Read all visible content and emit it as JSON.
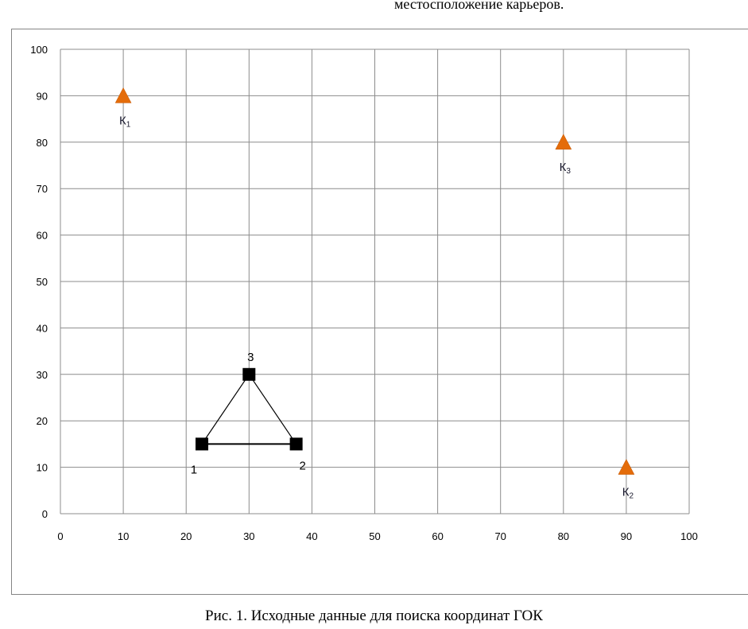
{
  "header_text": "местосположение карьеров.",
  "caption": "Рис. 1. Исходные данные для поиска координат ГОК",
  "chart_data": {
    "type": "scatter",
    "xlim": [
      0,
      100
    ],
    "ylim": [
      0,
      100
    ],
    "x_ticks": [
      "0",
      "10",
      "20",
      "30",
      "40",
      "50",
      "60",
      "70",
      "80",
      "90",
      "100"
    ],
    "y_ticks": [
      "0",
      "10",
      "20",
      "30",
      "40",
      "50",
      "60",
      "70",
      "80",
      "90",
      "100"
    ],
    "grid": true,
    "colors": {
      "quarry": "#E46C0A",
      "point": "#000000",
      "grid": "#8c8c8c"
    },
    "quarries": [
      {
        "main": "К",
        "sub": "1",
        "x": 10,
        "y": 90
      },
      {
        "main": "К",
        "sub": "2",
        "x": 90,
        "y": 10
      },
      {
        "main": "К",
        "sub": "3",
        "x": 80,
        "y": 80
      }
    ],
    "points": [
      {
        "label": "1",
        "x": 22.5,
        "y": 15
      },
      {
        "label": "2",
        "x": 37.5,
        "y": 15
      },
      {
        "label": "3",
        "x": 30,
        "y": 30
      }
    ],
    "triangle": [
      "1",
      "2",
      "3"
    ]
  }
}
